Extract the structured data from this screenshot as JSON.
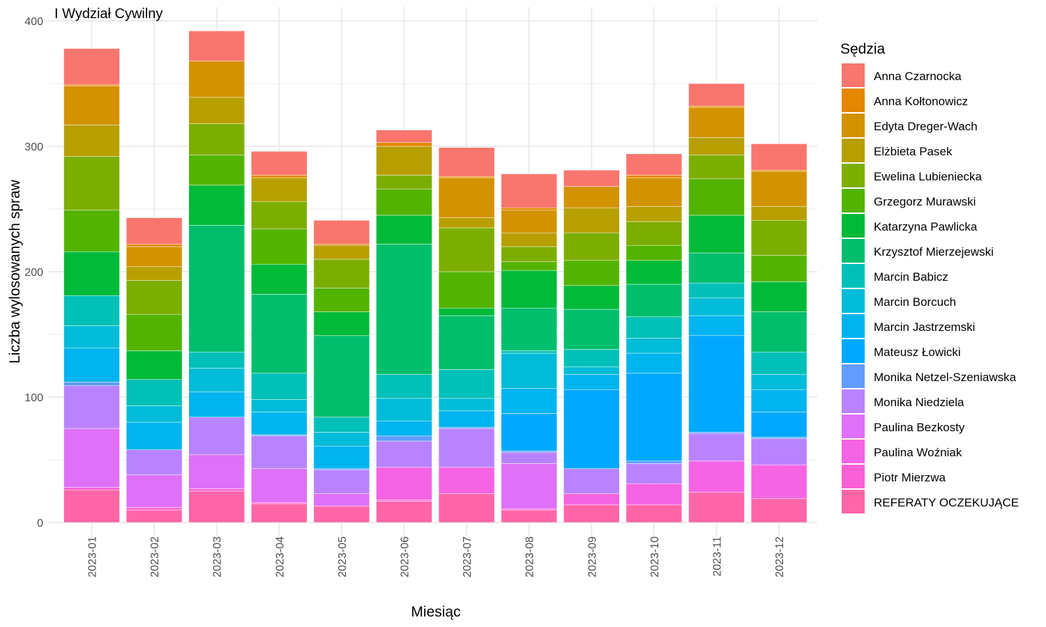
{
  "chart_data": {
    "type": "bar",
    "stacked": true,
    "title": "I Wydział Cywilny",
    "xlabel": "Miesiąc",
    "ylabel": "Liczba wylosowanych spraw",
    "ylim": [
      0,
      400
    ],
    "yticks": [
      0,
      100,
      200,
      300,
      400
    ],
    "grid": true,
    "legend_position": "right",
    "legend_title": "Sędzia",
    "categories": [
      "2023-01",
      "2023-02",
      "2023-03",
      "2023-04",
      "2023-05",
      "2023-06",
      "2023-07",
      "2023-08",
      "2023-09",
      "2023-10",
      "2023-11",
      "2023-12"
    ],
    "series": [
      {
        "name": "REFERATY OCZEKUJĄCE",
        "color": "#FF66A8",
        "values": [
          26,
          10,
          25,
          15,
          13,
          17,
          23,
          10,
          14,
          14,
          24,
          19
        ]
      },
      {
        "name": "Piotr Mierzwa",
        "color": "#FB61D7",
        "values": [
          2,
          2,
          2,
          1,
          0,
          1,
          0,
          1,
          0,
          0,
          0,
          0
        ]
      },
      {
        "name": "Paulina Woźniak",
        "color": "#F564E3",
        "values": [
          0,
          0,
          0,
          0,
          0,
          26,
          21,
          0,
          9,
          17,
          25,
          27
        ]
      },
      {
        "name": "Paulina Bezkosty",
        "color": "#DF70F8",
        "values": [
          47,
          26,
          27,
          27,
          10,
          0,
          0,
          36,
          0,
          0,
          0,
          0
        ]
      },
      {
        "name": "Monika Niedziela",
        "color": "#B983FF",
        "values": [
          34,
          20,
          30,
          26,
          19,
          21,
          31,
          9,
          20,
          16,
          22,
          21
        ]
      },
      {
        "name": "Monika Netzel-Szeniawska",
        "color": "#619CFF",
        "values": [
          3,
          0,
          0,
          1,
          1,
          4,
          1,
          1,
          0,
          2,
          1,
          1
        ]
      },
      {
        "name": "Mateusz Łowicki",
        "color": "#00A9FF",
        "values": [
          0,
          0,
          0,
          0,
          0,
          0,
          0,
          30,
          63,
          70,
          77,
          20
        ]
      },
      {
        "name": "Marcin Jastrzemski",
        "color": "#00B4EF",
        "values": [
          27,
          22,
          20,
          18,
          18,
          12,
          13,
          20,
          12,
          16,
          16,
          18
        ]
      },
      {
        "name": "Marcin Borcuch",
        "color": "#00BCD8",
        "values": [
          18,
          13,
          19,
          10,
          11,
          18,
          10,
          28,
          6,
          12,
          14,
          12
        ]
      },
      {
        "name": "Marcin Babicz",
        "color": "#00C0B8",
        "values": [
          24,
          21,
          13,
          21,
          12,
          19,
          23,
          2,
          14,
          17,
          12,
          18
        ]
      },
      {
        "name": "Krzysztof Mierzejewski",
        "color": "#00BE6C",
        "values": [
          0,
          0,
          101,
          63,
          65,
          104,
          43,
          34,
          32,
          26,
          24,
          32
        ]
      },
      {
        "name": "Katarzyna Pawlicka",
        "color": "#00BA38",
        "values": [
          35,
          23,
          32,
          24,
          19,
          23,
          6,
          30,
          19,
          19,
          30,
          24
        ]
      },
      {
        "name": "Grzegorz Murawski",
        "color": "#53B400",
        "values": [
          33,
          29,
          24,
          28,
          19,
          21,
          29,
          7,
          20,
          12,
          29,
          21
        ]
      },
      {
        "name": "Ewelina Lubieniecka",
        "color": "#7CAE00",
        "values": [
          43,
          27,
          25,
          22,
          23,
          11,
          35,
          12,
          22,
          19,
          19,
          28
        ]
      },
      {
        "name": "Elżbieta Pasek",
        "color": "#B79F00",
        "values": [
          25,
          11,
          21,
          19,
          11,
          23,
          8,
          11,
          20,
          12,
          14,
          11
        ]
      },
      {
        "name": "Edyta Dreger-Wach",
        "color": "#D39200",
        "values": [
          31,
          16,
          29,
          0,
          0,
          0,
          32,
          18,
          17,
          23,
          24,
          28
        ]
      },
      {
        "name": "Anna Kołtonowicz",
        "color": "#E58700",
        "values": [
          1,
          2,
          0,
          2,
          1,
          3,
          1,
          2,
          0,
          2,
          1,
          1
        ]
      },
      {
        "name": "Anna Czarnocka",
        "color": "#F8766D",
        "values": [
          29,
          21,
          24,
          19,
          19,
          10,
          23,
          27,
          13,
          17,
          18,
          21
        ]
      }
    ]
  }
}
